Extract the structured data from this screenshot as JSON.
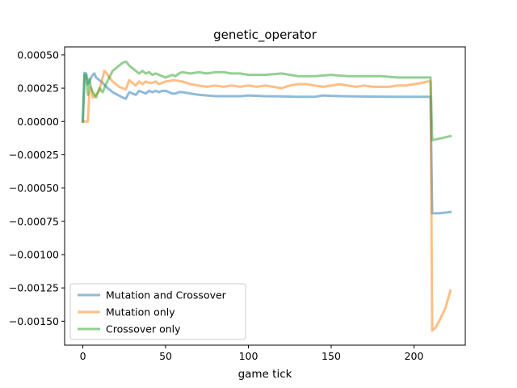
{
  "chart_data": {
    "type": "line",
    "title": "genetic_operator",
    "xlabel": "game tick",
    "ylabel": "",
    "xlim": [
      -11,
      231
    ],
    "ylim": [
      -0.00168,
      0.00056
    ],
    "xticks": [
      0,
      50,
      100,
      150,
      200
    ],
    "xtick_labels": [
      "0",
      "50",
      "100",
      "150",
      "200"
    ],
    "yticks": [
      0.0005,
      0.00025,
      0.0,
      -0.00025,
      -0.0005,
      -0.00075,
      -0.001,
      -0.00125,
      -0.0015
    ],
    "ytick_labels": [
      "0.00050",
      "0.00025",
      "0.00000",
      "−0.00025",
      "−0.00050",
      "−0.00075",
      "−0.00100",
      "−0.00125",
      "−0.00150"
    ],
    "grid": false,
    "legend_position": "lower-left",
    "series": [
      {
        "name": "Mutation and Crossover",
        "color": "#1f77b4",
        "x": [
          0,
          1,
          2,
          3,
          4,
          5,
          6,
          7,
          8,
          10,
          12,
          15,
          18,
          21,
          24,
          26,
          28,
          30,
          32,
          34,
          36,
          38,
          40,
          42,
          44,
          46,
          48,
          50,
          52,
          54,
          56,
          58,
          60,
          65,
          70,
          75,
          80,
          85,
          90,
          95,
          100,
          110,
          120,
          130,
          140,
          145,
          150,
          160,
          170,
          180,
          190,
          200,
          208,
          210,
          211,
          215,
          222
        ],
        "y": [
          0.0,
          0.000365,
          0.00036,
          0.00028,
          0.0003,
          0.00033,
          0.00035,
          0.00036,
          0.00033,
          0.00031,
          0.00029,
          0.00025,
          0.00022,
          0.0002,
          0.00018,
          0.00017,
          0.00022,
          0.00021,
          0.0002,
          0.00023,
          0.00022,
          0.00021,
          0.00023,
          0.00022,
          0.00023,
          0.00022,
          0.00023,
          0.00023,
          0.00022,
          0.00021,
          0.00021,
          0.00022,
          0.00022,
          0.00021,
          0.0002,
          0.000195,
          0.00019,
          0.00019,
          0.00019,
          0.00019,
          0.000195,
          0.00019,
          0.000188,
          0.000185,
          0.000185,
          0.000195,
          0.000192,
          0.000189,
          0.000187,
          0.000186,
          0.000185,
          0.000185,
          0.000185,
          0.000185,
          -0.00069,
          -0.00069,
          -0.00068
        ]
      },
      {
        "name": "Mutation only",
        "color": "#ff7f0e",
        "x": [
          0,
          1,
          2,
          3,
          4,
          5,
          6,
          8,
          10,
          12,
          13,
          14,
          16,
          18,
          20,
          22,
          24,
          26,
          28,
          30,
          32,
          34,
          36,
          38,
          40,
          42,
          44,
          46,
          50,
          55,
          60,
          65,
          70,
          75,
          80,
          85,
          90,
          95,
          100,
          105,
          110,
          115,
          120,
          125,
          130,
          135,
          140,
          145,
          150,
          155,
          160,
          165,
          170,
          175,
          180,
          185,
          190,
          195,
          200,
          205,
          208,
          210,
          211,
          213,
          216,
          219,
          222
        ],
        "y": [
          0.0,
          0.0,
          0.0,
          0.0,
          0.00022,
          0.00025,
          0.00018,
          0.0002,
          0.00023,
          0.00033,
          0.00038,
          0.00037,
          0.00033,
          0.0003,
          0.00028,
          0.00026,
          0.00025,
          0.00024,
          0.00031,
          0.00029,
          0.00027,
          0.0003,
          0.00028,
          0.0003,
          0.00029,
          0.00029,
          0.0003,
          0.00028,
          0.0003,
          0.00031,
          0.0003,
          0.00028,
          0.00027,
          0.00026,
          0.00027,
          0.00026,
          0.00027,
          0.00026,
          0.00027,
          0.00026,
          0.00027,
          0.00026,
          0.00025,
          0.00027,
          0.00028,
          0.00028,
          0.00027,
          0.00026,
          0.00027,
          0.00028,
          0.00027,
          0.00026,
          0.00027,
          0.00026,
          0.00026,
          0.00026,
          0.00027,
          0.00027,
          0.00028,
          0.00029,
          0.0003,
          0.0003,
          -0.00157,
          -0.00155,
          -0.00148,
          -0.0014,
          -0.00127
        ]
      },
      {
        "name": "Crossover only",
        "color": "#2ca02c",
        "x": [
          0,
          1,
          2,
          3,
          4,
          5,
          6,
          8,
          10,
          12,
          14,
          16,
          18,
          20,
          22,
          24,
          26,
          28,
          30,
          32,
          34,
          36,
          38,
          40,
          42,
          44,
          46,
          48,
          50,
          52,
          54,
          56,
          58,
          60,
          65,
          70,
          75,
          80,
          85,
          90,
          95,
          100,
          110,
          120,
          130,
          140,
          150,
          160,
          170,
          180,
          190,
          200,
          208,
          210,
          211,
          215,
          222
        ],
        "y": [
          0.0,
          0.00035,
          0.00035,
          0.0002,
          0.00032,
          0.00025,
          0.00022,
          0.00018,
          0.00025,
          0.00022,
          0.00028,
          0.00033,
          0.00038,
          0.0004,
          0.00042,
          0.00044,
          0.00045,
          0.00042,
          0.0004,
          0.00038,
          0.00036,
          0.00038,
          0.00036,
          0.00037,
          0.00035,
          0.00036,
          0.00035,
          0.00034,
          0.00033,
          0.00034,
          0.00035,
          0.00034,
          0.00036,
          0.00037,
          0.00036,
          0.00037,
          0.00036,
          0.00037,
          0.00037,
          0.00036,
          0.00036,
          0.00035,
          0.00035,
          0.00036,
          0.00034,
          0.00034,
          0.00035,
          0.00034,
          0.00034,
          0.00034,
          0.00033,
          0.00033,
          0.00033,
          0.00033,
          -0.00014,
          -0.00013,
          -0.00011
        ]
      }
    ]
  }
}
